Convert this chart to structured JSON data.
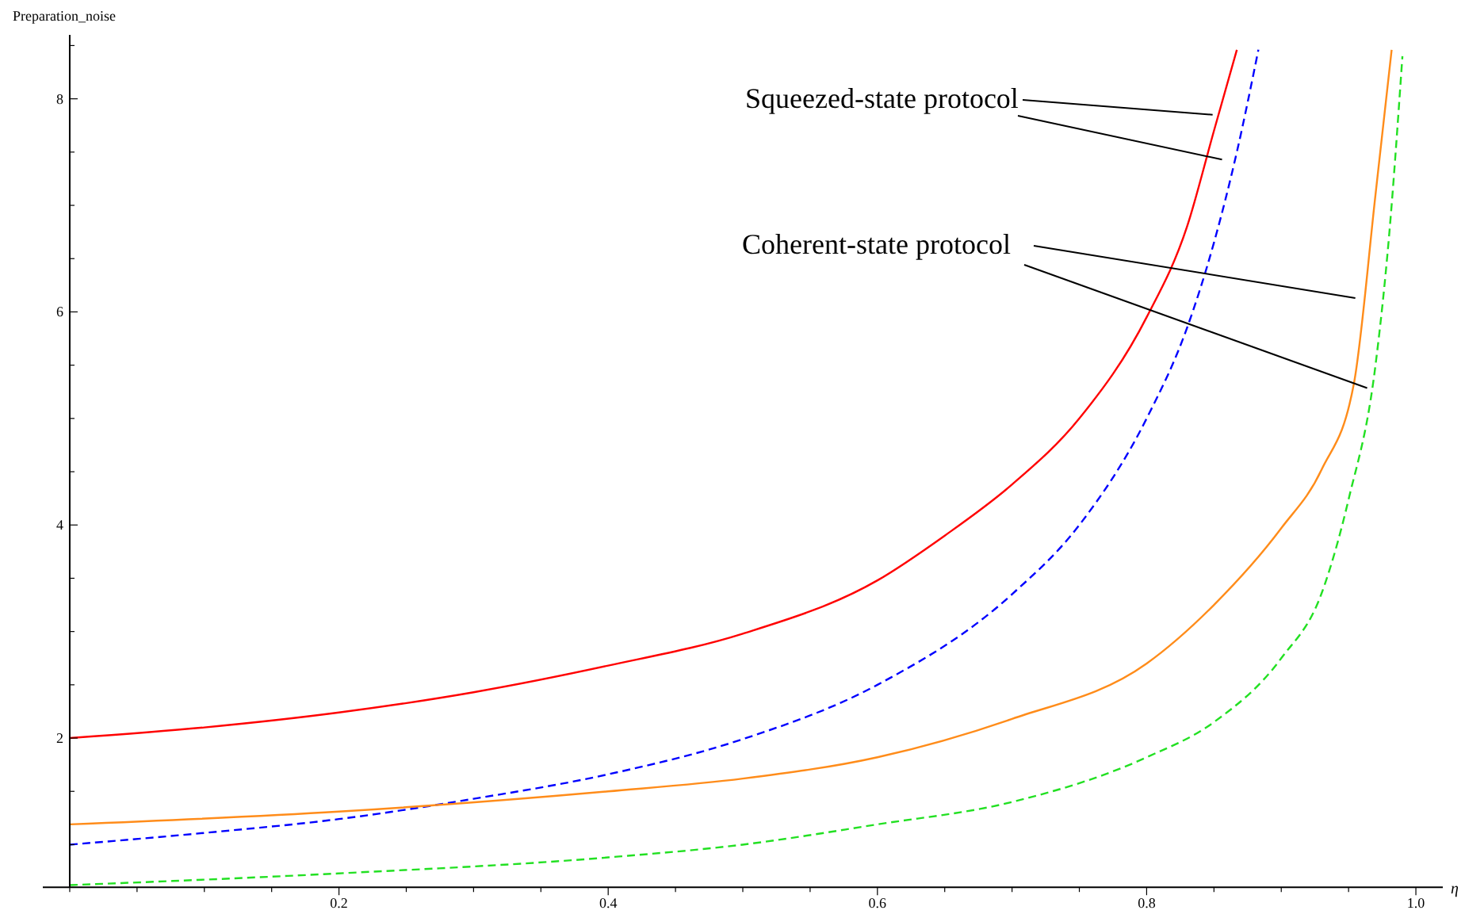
{
  "chart_data": {
    "type": "line",
    "ylabel": "Preparation_noise",
    "xlabel": "η",
    "annotations": [
      {
        "text": "Squeezed-state protocol",
        "x": 0.849,
        "y": 7.85
      },
      {
        "text": "Coherent-state protocol",
        "x": 0.954,
        "y": 5.33
      }
    ],
    "xlim": [
      -0.02,
      1.02
    ],
    "ylim": [
      0.6,
      8.6
    ],
    "xticks": [
      {
        "value": 0,
        "label": null
      },
      {
        "value": 0.05,
        "label": null
      },
      {
        "value": 0.1,
        "label": null
      },
      {
        "value": 0.15,
        "label": null
      },
      0.2,
      {
        "value": 0.25,
        "label": null
      },
      {
        "value": 0.3,
        "label": null
      },
      {
        "value": 0.35,
        "label": null
      },
      0.4,
      {
        "value": 0.45,
        "label": null
      },
      {
        "value": 0.5,
        "label": null
      },
      {
        "value": 0.55,
        "label": null
      },
      0.6,
      {
        "value": 0.65,
        "label": null
      },
      {
        "value": 0.7,
        "label": null
      },
      {
        "value": 0.75,
        "label": null
      },
      0.8,
      {
        "value": 0.85,
        "label": null
      },
      {
        "value": 0.9,
        "label": null
      },
      {
        "value": 0.95,
        "label": null
      },
      {
        "value": 1,
        "label": "1.0"
      }
    ],
    "yticks": [
      {
        "value": 1,
        "label": null
      },
      {
        "value": 1.5,
        "label": null
      },
      2,
      {
        "value": 2.5,
        "label": null
      },
      {
        "value": 3,
        "label": null
      },
      {
        "value": 3.5,
        "label": null
      },
      4,
      {
        "value": 4.5,
        "label": null
      },
      {
        "value": 5,
        "label": null
      },
      {
        "value": 5.5,
        "label": null
      },
      6,
      {
        "value": 6.5,
        "label": null
      },
      {
        "value": 7,
        "label": null
      },
      {
        "value": 7.5,
        "label": null
      },
      8,
      {
        "value": 8.5,
        "label": null
      }
    ],
    "grid": false,
    "marker": "none",
    "series": [
      {
        "color": "#ff0000",
        "line_style": "solid",
        "x": [
          0,
          0.1,
          0.2,
          0.3,
          0.4,
          0.5,
          0.6,
          0.65,
          0.7,
          0.75,
          0.8,
          0.83,
          0.85,
          0.867
        ],
        "values": [
          2,
          2.1,
          2.24,
          2.43,
          2.68,
          2.98,
          3.48,
          3.9,
          4.38,
          5.0,
          5.95,
          6.8,
          7.7,
          8.46
        ]
      },
      {
        "color": "#0000ff",
        "line_style": "dashed",
        "x": [
          0,
          0.1,
          0.2,
          0.3,
          0.4,
          0.5,
          0.6,
          0.7,
          0.75,
          0.8,
          0.83,
          0.85,
          0.867,
          0.883
        ],
        "values": [
          1.0,
          1.11,
          1.24,
          1.43,
          1.66,
          1.99,
          2.5,
          3.35,
          4.0,
          5.0,
          5.85,
          6.65,
          7.5,
          8.46
        ]
      },
      {
        "color": "#ff8c1a",
        "line_style": "solid",
        "x": [
          0,
          0.2,
          0.4,
          0.5,
          0.6,
          0.7,
          0.8,
          0.85,
          0.9,
          0.93,
          0.954,
          0.97,
          0.982
        ],
        "values": [
          1.19,
          1.31,
          1.5,
          1.62,
          1.82,
          2.18,
          2.7,
          3.25,
          3.97,
          4.52,
          5.33,
          7.1,
          8.46
        ]
      },
      {
        "color": "#22e022",
        "line_style": "dashed",
        "x": [
          0,
          0.2,
          0.4,
          0.5,
          0.6,
          0.7,
          0.8,
          0.85,
          0.9,
          0.93,
          0.95,
          0.97,
          0.98,
          0.99
        ],
        "values": [
          0.62,
          0.73,
          0.88,
          1.0,
          1.19,
          1.4,
          1.82,
          2.15,
          2.75,
          3.36,
          4.24,
          5.5,
          6.7,
          8.4
        ]
      }
    ]
  }
}
